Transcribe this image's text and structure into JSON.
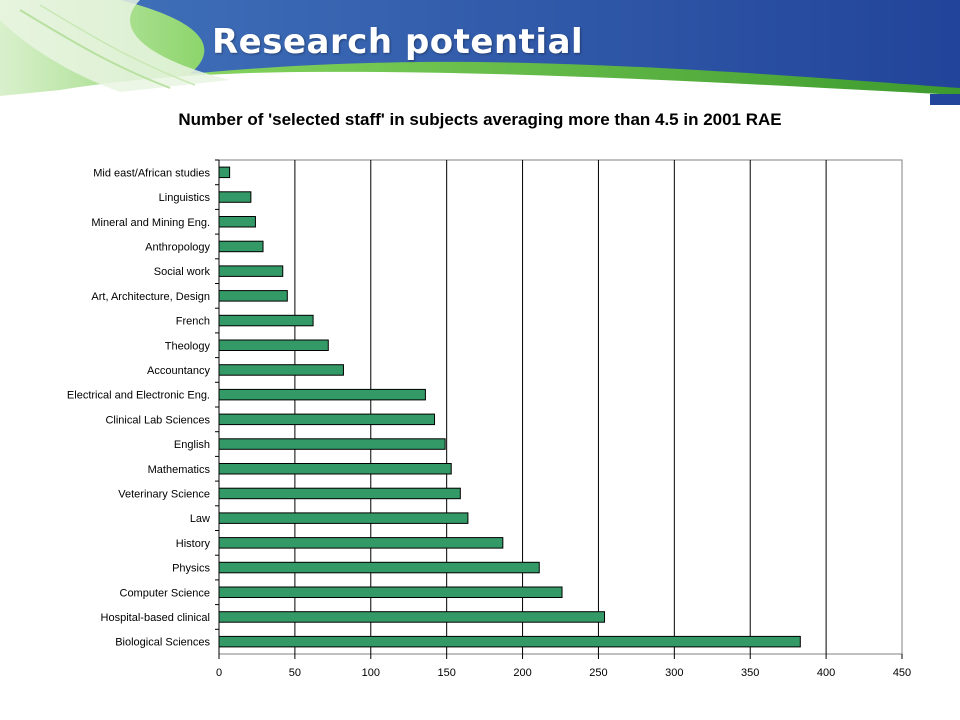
{
  "slide": {
    "title": "Research potential"
  },
  "colors": {
    "bar_fill": "#339966",
    "header_blue": "#2a4f9c",
    "header_green": "#5cbf3a"
  },
  "chart_data": {
    "type": "bar",
    "orientation": "horizontal",
    "title": "Number of 'selected staff' in subjects averaging more than 4.5 in 2001 RAE",
    "xlabel": "",
    "ylabel": "",
    "xlim": [
      0,
      450
    ],
    "x_ticks": [
      0,
      50,
      100,
      150,
      200,
      250,
      300,
      350,
      400,
      450
    ],
    "grid": "vertical",
    "legend": "none",
    "categories": [
      "Mid east/African studies",
      "Linguistics",
      "Mineral and Mining Eng.",
      "Anthropology",
      "Social work",
      "Art, Architecture, Design",
      "French",
      "Theology",
      "Accountancy",
      "Electrical and Electronic Eng.",
      "Clinical Lab Sciences",
      "English",
      "Mathematics",
      "Veterinary Science",
      "Law",
      "History",
      "Physics",
      "Computer Science",
      "Hospital-based clinical",
      "Biological Sciences"
    ],
    "values": [
      7,
      21,
      24,
      29,
      42,
      45,
      62,
      72,
      82,
      136,
      142,
      149,
      153,
      159,
      164,
      187,
      211,
      226,
      254,
      383
    ]
  }
}
